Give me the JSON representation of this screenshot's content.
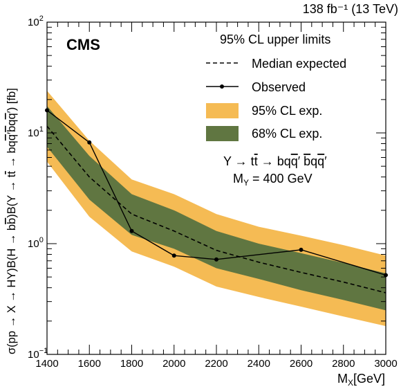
{
  "header": {
    "lumi_label": "138 fb⁻¹ (13 TeV)",
    "experiment": "CMS"
  },
  "legend": {
    "title": "95% CL upper limits",
    "items": [
      {
        "label": "Median expected",
        "kind": "dashed-line",
        "color": "#000000"
      },
      {
        "label": "Observed",
        "kind": "line-marker",
        "color": "#000000"
      },
      {
        "label": "95% CL exp.",
        "kind": "band",
        "color": "#F5BB54"
      },
      {
        "label": "68% CL exp.",
        "kind": "band",
        "color": "#607641"
      }
    ]
  },
  "annotation": {
    "process": "Y → t t̄ → bq q̄′ b̄q̄ q′",
    "mass": "M_Y = 400 GeV"
  },
  "colors": {
    "band95": "#F5BB54",
    "band68": "#607641",
    "line": "#000000"
  },
  "chart_data": {
    "type": "line",
    "xlabel": "M_X [GeV]",
    "ylabel": "σ(pp → X → HY)B(H → b̄b)B(Y → t̄t → bq q̄′ b̄q̄ q′) [fb]",
    "xlim": [
      1400,
      3000
    ],
    "ylim": [
      0.1,
      100
    ],
    "yscale": "log",
    "x_ticks": [
      1400,
      1600,
      1800,
      2000,
      2200,
      2400,
      2600,
      2800,
      3000
    ],
    "y_tick_labels": [
      "10⁻¹",
      "1",
      "10",
      "10²"
    ],
    "grid": false,
    "legend_position": "top-right",
    "x": [
      1400,
      1600,
      1800,
      2000,
      2200,
      2400,
      2600,
      2800,
      3000
    ],
    "series": [
      {
        "name": "Median expected",
        "values": [
          11.5,
          4.0,
          1.85,
          1.3,
          0.87,
          0.68,
          0.55,
          0.45,
          0.36
        ]
      },
      {
        "name": "Observed",
        "x": [
          1400,
          1600,
          1800,
          2000,
          2200,
          2600,
          3000
        ],
        "values": [
          16.0,
          8.2,
          1.3,
          0.78,
          0.72,
          0.88,
          0.52
        ]
      },
      {
        "name": "68% CL exp.",
        "low": [
          7.5,
          2.5,
          1.2,
          0.9,
          0.6,
          0.48,
          0.38,
          0.31,
          0.25
        ],
        "high": [
          17.5,
          6.2,
          2.8,
          2.0,
          1.3,
          1.0,
          0.82,
          0.67,
          0.54
        ]
      },
      {
        "name": "95% CL exp.",
        "low": [
          5.5,
          1.75,
          0.85,
          0.62,
          0.41,
          0.33,
          0.27,
          0.22,
          0.18
        ],
        "high": [
          24.0,
          8.5,
          3.8,
          2.8,
          1.85,
          1.42,
          1.18,
          0.97,
          0.78
        ]
      }
    ]
  }
}
